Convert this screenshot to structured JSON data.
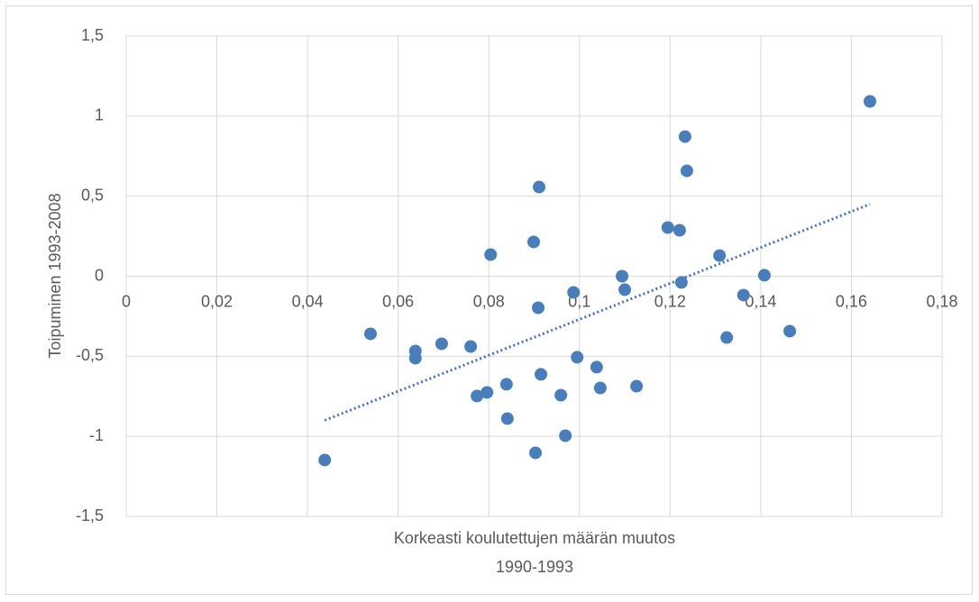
{
  "chart_data": {
    "type": "scatter",
    "xlabel": [
      "Korkeasti koulutettujen määrän muutos",
      "1990-1993"
    ],
    "ylabel": "Toipuminen 1993-2008",
    "xlim": [
      0,
      0.18
    ],
    "ylim": [
      -1.5,
      1.5
    ],
    "xticks": [
      0,
      {
        "value": 0.02,
        "label": "0,02"
      },
      {
        "value": 0.04,
        "label": "0,04"
      },
      {
        "value": 0.06,
        "label": "0,06"
      },
      {
        "value": 0.08,
        "label": "0,08"
      },
      {
        "value": 0.1,
        "label": "0,1"
      },
      {
        "value": 0.12,
        "label": "0,12"
      },
      {
        "value": 0.14,
        "label": "0,14"
      },
      {
        "value": 0.16,
        "label": "0,16"
      },
      {
        "value": 0.18,
        "label": "0,18"
      }
    ],
    "yticks": [
      {
        "value": -1.5,
        "label": "-1,5"
      },
      -1,
      {
        "value": -0.5,
        "label": "-0,5"
      },
      0,
      {
        "value": 0.5,
        "label": "0,5"
      },
      1,
      {
        "value": 1.5,
        "label": "1,5"
      }
    ],
    "grid": true,
    "color": "#4a7ebb",
    "x": [
      0.0438,
      0.0539,
      0.0638,
      0.0638,
      0.0696,
      0.076,
      0.0774,
      0.0796,
      0.0804,
      0.0839,
      0.0841,
      0.0899,
      0.0903,
      0.0909,
      0.0911,
      0.0915,
      0.0959,
      0.0969,
      0.0987,
      0.0995,
      0.1038,
      0.1046,
      0.1094,
      0.11,
      0.1126,
      0.1195,
      0.1221,
      0.1225,
      0.1233,
      0.1237,
      0.1309,
      0.1325,
      0.1362,
      0.1408,
      0.1464,
      0.1641
    ],
    "values": [
      -1.148,
      -0.36,
      -0.467,
      -0.512,
      -0.422,
      -0.439,
      -0.748,
      -0.726,
      0.135,
      -0.675,
      -0.889,
      0.214,
      -1.103,
      -0.197,
      0.557,
      -0.613,
      -0.743,
      -0.996,
      -0.101,
      -0.506,
      -0.568,
      -0.698,
      0.0,
      -0.084,
      -0.687,
      0.304,
      0.287,
      -0.039,
      0.872,
      0.658,
      0.129,
      -0.383,
      -0.118,
      0.006,
      -0.343,
      1.092
    ],
    "trendline": {
      "x": [
        0.0438,
        0.1641
      ],
      "y": [
        -0.9,
        0.45
      ],
      "color": "#4472c4"
    }
  }
}
